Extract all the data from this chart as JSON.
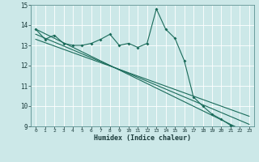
{
  "title": "",
  "xlabel": "Humidex (Indice chaleur)",
  "ylabel": "",
  "bg_color": "#cce8e8",
  "grid_color": "#ffffff",
  "line_color": "#1a6b5a",
  "xlim": [
    -0.5,
    23.5
  ],
  "ylim": [
    9,
    15
  ],
  "xticks": [
    0,
    1,
    2,
    3,
    4,
    5,
    6,
    7,
    8,
    9,
    10,
    11,
    12,
    13,
    14,
    15,
    16,
    17,
    18,
    19,
    20,
    21,
    22,
    23
  ],
  "yticks": [
    9,
    10,
    11,
    12,
    13,
    14,
    15
  ],
  "humidex_line": {
    "x": [
      0,
      1,
      2,
      3,
      4,
      5,
      6,
      7,
      8,
      9,
      10,
      11,
      12,
      13,
      14,
      15,
      16,
      17,
      18,
      19,
      20,
      21,
      22,
      23
    ],
    "y": [
      13.8,
      13.3,
      13.5,
      13.1,
      13.0,
      13.0,
      13.1,
      13.3,
      13.55,
      13.0,
      13.1,
      12.9,
      13.1,
      14.8,
      13.8,
      13.35,
      12.25,
      10.45,
      10.0,
      9.6,
      9.35,
      9.05,
      8.85,
      8.65
    ]
  },
  "linear1": {
    "x": [
      0,
      23
    ],
    "y": [
      13.8,
      8.65
    ]
  },
  "linear2": {
    "x": [
      0,
      23
    ],
    "y": [
      13.55,
      9.1
    ]
  },
  "linear3": {
    "x": [
      0,
      23
    ],
    "y": [
      13.3,
      9.5
    ]
  }
}
